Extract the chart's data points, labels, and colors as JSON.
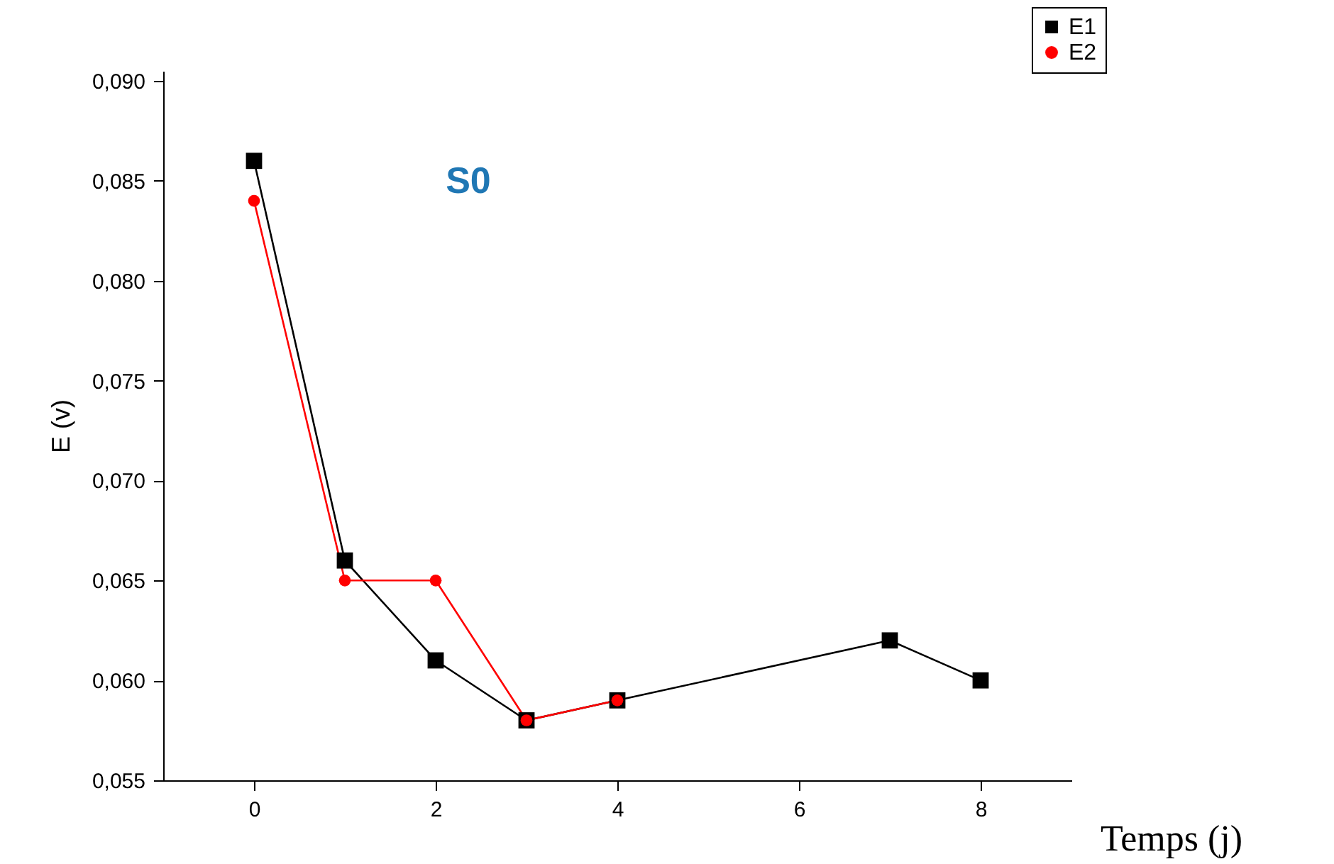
{
  "chart_data": {
    "type": "line",
    "xlabel": "Temps (j)",
    "ylabel": "E (v)",
    "annotations": [
      "S0"
    ],
    "series": [
      {
        "name": "E1",
        "color": "#000000",
        "marker": "square",
        "x": [
          0,
          1,
          2,
          3,
          4,
          7,
          8
        ],
        "values": [
          0.086,
          0.066,
          0.061,
          0.058,
          0.059,
          0.062,
          0.06
        ]
      },
      {
        "name": "E2",
        "color": "#ff0000",
        "marker": "circle",
        "x": [
          0,
          1,
          2,
          3,
          4
        ],
        "values": [
          0.084,
          0.065,
          0.065,
          0.058,
          0.059
        ]
      }
    ],
    "xlim": [
      -1,
      9
    ],
    "xticks": [
      0,
      2,
      4,
      6,
      8
    ],
    "ylim": [
      0.055,
      0.0905
    ],
    "yticks": [
      {
        "value": 0.055,
        "label": "0,055"
      },
      {
        "value": 0.06,
        "label": "0,060"
      },
      {
        "value": 0.065,
        "label": "0,065"
      },
      {
        "value": 0.07,
        "label": "0,070"
      },
      {
        "value": 0.075,
        "label": "0,075"
      },
      {
        "value": 0.08,
        "label": "0,080"
      },
      {
        "value": 0.085,
        "label": "0,085"
      },
      {
        "value": 0.09,
        "label": "0,090"
      }
    ],
    "grid": false,
    "legend": "top right",
    "line_style": "solid"
  }
}
